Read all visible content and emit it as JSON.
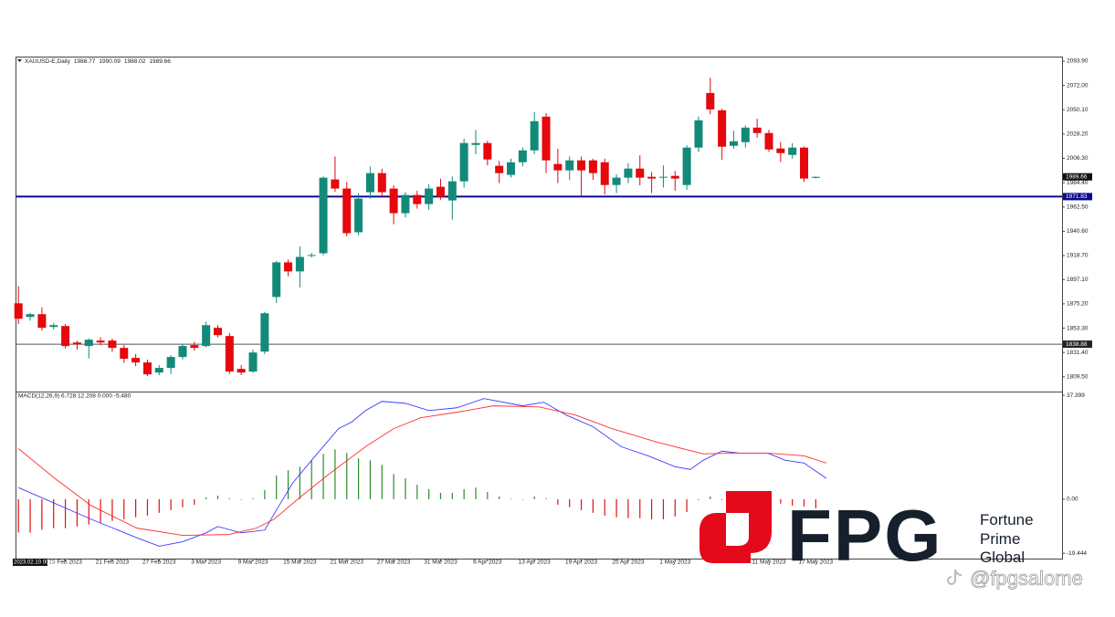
{
  "chart_data": [
    {
      "type": "candlestick",
      "title": "XAUUSD-E,Daily",
      "up_color": "#138a79",
      "down_color": "#e5080c",
      "xlim": [
        -0.25,
        89
      ],
      "ylim": [
        1797,
        2098
      ],
      "yticks": [
        {
          "value": 2093.9,
          "label": "2093.90"
        },
        {
          "value": 2072,
          "label": "2072.00"
        },
        {
          "value": 2050.1,
          "label": "2050.10"
        },
        {
          "value": 2028.2,
          "label": "2028.20"
        },
        {
          "value": 2006.3,
          "label": "2006.30"
        },
        {
          "value": 1984.4,
          "label": "1984.40"
        },
        {
          "value": 1962.5,
          "label": "1962.50"
        },
        {
          "value": 1940.6,
          "label": "1940.60"
        },
        {
          "value": 1918.7,
          "label": "1918.70"
        },
        {
          "value": 1897.1,
          "label": "1897.10"
        },
        {
          "value": 1875.2,
          "label": "1875.20"
        },
        {
          "value": 1853.3,
          "label": "1853.30"
        },
        {
          "value": 1831.4,
          "label": "1831.40"
        },
        {
          "value": 1809.5,
          "label": "1809.50"
        }
      ],
      "hlines": [
        {
          "value": 1971.83,
          "color": "#0a0a8c"
        },
        {
          "value": 1838.88,
          "color": "#555555"
        }
      ],
      "open": [
        1875.7,
        1863.4,
        1865.9,
        1854.4,
        1855.2,
        1840.4,
        1837.2,
        1842.1,
        1842.1,
        1835.5,
        1826.5,
        1822.4,
        1813.3,
        1817.5,
        1827.3,
        1838.0,
        1837.2,
        1853.6,
        1846.2,
        1816.6,
        1814.2,
        1832.2,
        1881.4,
        1912.6,
        1904.4,
        1918.4,
        1920.8,
        1987.3,
        1979.1,
        1939.7,
        1975.8,
        1993.0,
        1979.1,
        1956.9,
        1973.3,
        1965.1,
        1980.7,
        1968.4,
        1985.6,
        2018.4,
        2020.1,
        1999.6,
        1991.4,
        2002.8,
        2013.5,
        2043.9,
        2001.2,
        1995.5,
        2004.5,
        2004.5,
        2002.8,
        1982.3,
        1988.9,
        1997.1,
        1989.7,
        1988.9,
        1990.5,
        1982.3,
        2016.0,
        2065.2,
        2049.6,
        2017.6,
        2020.9,
        2034.0,
        2029.1,
        2015.2,
        2009.4,
        2016.0,
        1988.77
      ],
      "high": [
        1891,
        1867,
        1872,
        1858,
        1857,
        1842,
        1844,
        1845,
        1844,
        1838,
        1830,
        1825,
        1820,
        1829,
        1839,
        1841,
        1859,
        1856,
        1849,
        1820,
        1834,
        1868,
        1914,
        1915,
        1927,
        1921,
        1990,
        2008,
        1985,
        1975,
        1999,
        1997,
        1982,
        1976,
        1977,
        1983,
        1988,
        1990,
        2024,
        2032,
        2022,
        2004,
        2006,
        2016,
        2048,
        2047,
        2015,
        2008,
        2008,
        2006,
        2006,
        1992,
        2002,
        2009,
        1994,
        2000,
        1995,
        2018,
        2044,
        2079,
        2051,
        2031,
        2036,
        2042,
        2032,
        2021,
        2020,
        2017,
        1990.09
      ],
      "low": [
        1857,
        1860,
        1851,
        1852,
        1835,
        1834,
        1826,
        1838,
        1832,
        1822,
        1819,
        1810,
        1811,
        1812,
        1825,
        1833,
        1836,
        1845,
        1812,
        1811,
        1813,
        1830,
        1876,
        1900,
        1890,
        1917,
        1919,
        1976,
        1936,
        1937,
        1970,
        1972,
        1947,
        1953,
        1961,
        1960,
        1969,
        1951,
        1980,
        2010,
        2000,
        1984,
        1989,
        1999,
        2010,
        1993,
        1984,
        1987,
        1972,
        1987,
        1974,
        1975,
        1984,
        1982,
        1975,
        1980,
        1977,
        1978,
        2012,
        2046,
        2005,
        2015,
        2016,
        2025,
        2012,
        2003,
        2006,
        1985,
        1988.02
      ],
      "close": [
        1861.8,
        1865.9,
        1853.6,
        1856.0,
        1837.2,
        1838.8,
        1842.9,
        1840.4,
        1835.5,
        1825.7,
        1822.4,
        1811.7,
        1817.5,
        1827.3,
        1837.2,
        1835.5,
        1856.0,
        1847.0,
        1814.2,
        1813.3,
        1831.4,
        1866.7,
        1912.6,
        1904.4,
        1917.5,
        1919.2,
        1988.9,
        1979.1,
        1938.9,
        1970.0,
        1993.0,
        1975.8,
        1956.9,
        1973.3,
        1965.1,
        1979.1,
        1971.7,
        1985.6,
        2020.1,
        2020.1,
        2005.3,
        1993.0,
        2002.8,
        2013.5,
        2039.8,
        2004.5,
        1995.5,
        2004.5,
        1995.5,
        1993.0,
        1982.3,
        1988.9,
        1997.1,
        1988.9,
        1988.1,
        1989.7,
        1988.1,
        2016.0,
        2040.6,
        2050.4,
        2016.8,
        2021.7,
        2034.0,
        2029.1,
        2014.3,
        2011.0,
        2016.0,
        1988.1,
        1989.66
      ]
    },
    {
      "type": "macd",
      "title": "MACD(12,26,9) 6.728 12.208 0.000 -5.480",
      "xlim": [
        -0.25,
        89
      ],
      "ylim": [
        -20.7,
        38.4
      ],
      "yticks": [
        37.399,
        {
          "value": 0,
          "label": "0.00"
        },
        -19.444
      ],
      "positive_color": "#2e8b2e",
      "negative_color": "#e01010",
      "histogram": [
        -12,
        -12,
        -11,
        -10.4,
        -10.4,
        -9.8,
        -9.1,
        -8.5,
        -7.8,
        -7.2,
        -6.5,
        -5.9,
        -4.9,
        -3.9,
        -2.9,
        -2.0,
        0.7,
        1.3,
        0.3,
        -0.2,
        0.3,
        3.3,
        8.5,
        10.4,
        11.7,
        14.0,
        16.3,
        17.9,
        16.6,
        14.7,
        14.0,
        12.4,
        9.1,
        7.5,
        5.2,
        3.6,
        2.3,
        2.3,
        3.6,
        4.2,
        2.6,
        1.0,
        0.2,
        -0.2,
        1.0,
        0.3,
        -2.0,
        -2.9,
        -3.9,
        -4.9,
        -5.9,
        -6.5,
        -6.8,
        -6.8,
        -7.2,
        -7.2,
        -6.2,
        -4.6,
        -0.3,
        1.0,
        -0.3,
        -0.2,
        0.2,
        -0.3,
        0.7,
        -1.6,
        -2.3,
        -2.6,
        -3.3
      ],
      "series": [
        {
          "color": "#3b3bff",
          "x": [
            0,
            6.2,
            10,
            12,
            14,
            16,
            17,
            19,
            21,
            22,
            23.4,
            25,
            27.3,
            28.4,
            29.6,
            31,
            33,
            35,
            37.4,
            39.7,
            43,
            44.8,
            46.7,
            49,
            51.4,
            53.7,
            56,
            57.3,
            58.4,
            60,
            61.5,
            63.9,
            65.4,
            67,
            68.9
          ],
          "values": [
            4.2,
            -7.2,
            -13.7,
            -16.9,
            -15.3,
            -12.1,
            -9.8,
            -12.1,
            -11.1,
            -3.9,
            5.9,
            14.0,
            25.4,
            27.7,
            31.9,
            35.2,
            34.5,
            31.9,
            32.9,
            36.2,
            33.6,
            34.9,
            30.3,
            26.1,
            18.9,
            15.6,
            11.7,
            10.7,
            14.0,
            17.3,
            16.6,
            16.6,
            14.0,
            13.0,
            7.5
          ]
        },
        {
          "color": "#ff3030",
          "x": [
            0,
            3.1,
            6.2,
            10.1,
            14,
            17.9,
            20.3,
            21.8,
            24.1,
            26.5,
            29.6,
            32,
            34.3,
            37.4,
            40.5,
            44.4,
            47.5,
            50.6,
            54.5,
            58.4,
            60.7,
            63.9,
            67,
            68.9
          ],
          "values": [
            18.2,
            7.5,
            -2.3,
            -10.4,
            -13.0,
            -12.7,
            -10.4,
            -7.2,
            1.0,
            9.1,
            18.9,
            25.4,
            29.3,
            31.3,
            33.6,
            33.2,
            30.3,
            25.4,
            20.5,
            16.3,
            16.6,
            16.6,
            15.6,
            13.0
          ]
        }
      ],
      "cursor_label": "2023.02.10 00:00",
      "xticks": [
        {
          "value": 4,
          "label": "15 Feb 2023"
        },
        {
          "value": 8,
          "label": "21 Feb 2023"
        },
        {
          "value": 12,
          "label": "27 Feb 2023"
        },
        {
          "value": 16,
          "label": "3 Mar 2023"
        },
        {
          "value": 20,
          "label": "9 Mar 2023"
        },
        {
          "value": 24,
          "label": "15 Mar 2023"
        },
        {
          "value": 28,
          "label": "21 Mar 2023"
        },
        {
          "value": 32,
          "label": "27 Mar 2023"
        },
        {
          "value": 36,
          "label": "31 Mar 2023"
        },
        {
          "value": 40,
          "label": "6 Apr 2023"
        },
        {
          "value": 44,
          "label": "13 Apr 2023"
        },
        {
          "value": 48,
          "label": "19 Apr 2023"
        },
        {
          "value": 52,
          "label": "25 Apr 2023"
        },
        {
          "value": 56,
          "label": "1 May 2023"
        },
        {
          "value": 64,
          "label": "11 May 2023"
        },
        {
          "value": 68,
          "label": "17 May 2023"
        }
      ]
    }
  ],
  "watermark": {
    "logo": "FPG",
    "lines": [
      "Fortune",
      "Prime",
      "Global"
    ],
    "handle": "@fpgsalome"
  }
}
